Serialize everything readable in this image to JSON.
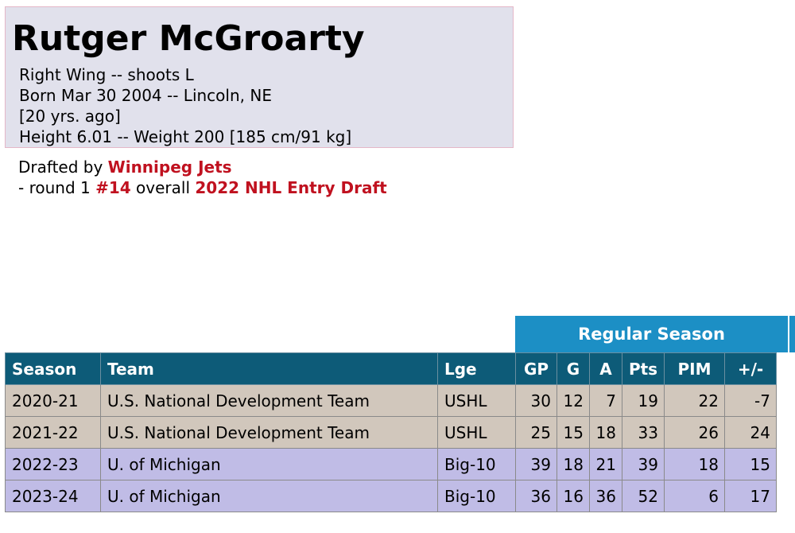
{
  "player": {
    "name": "Rutger McGroarty",
    "position_line": "Right Wing -- shoots L",
    "born_line": "Born Mar 30 2004 -- Lincoln, NE",
    "age_line": "[20 yrs. ago]",
    "size_line": "Height 6.01 -- Weight 200 [185 cm/91 kg]"
  },
  "draft": {
    "prefix": "Drafted by ",
    "team": "Winnipeg Jets",
    "round_text": "- round 1 ",
    "pick": "#14",
    "overall_text": " overall ",
    "draft_name": "2022 NHL Entry Draft"
  },
  "stats": {
    "group_header": "Regular Season",
    "columns": [
      "Season",
      "Team",
      "Lge",
      "GP",
      "G",
      "A",
      "Pts",
      "PIM",
      "+/-"
    ],
    "rows": [
      [
        "2020-21",
        "U.S. National Development Team",
        "USHL",
        "30",
        "12",
        "7",
        "19",
        "22",
        "-7"
      ],
      [
        "2021-22",
        "U.S. National Development Team",
        "USHL",
        "25",
        "15",
        "18",
        "33",
        "26",
        "24"
      ],
      [
        "2022-23",
        "U. of Michigan",
        "Big-10",
        "39",
        "18",
        "21",
        "39",
        "18",
        "15"
      ],
      [
        "2023-24",
        "U. of Michigan",
        "Big-10",
        "36",
        "16",
        "36",
        "52",
        "6",
        "17"
      ]
    ]
  },
  "colors": {
    "bio_bg": "#e1e1ec",
    "accent_red": "#c0111f",
    "header_blue": "#1c8fc5",
    "column_header_teal": "#0d5b78",
    "usdt_row_bg": "#d1c7bc",
    "michigan_row_bg": "#c0bce6"
  }
}
